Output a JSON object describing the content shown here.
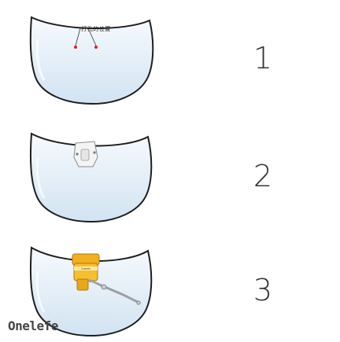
{
  "steps": [
    {
      "number": "1",
      "caption": "打孔的位置"
    },
    {
      "number": "2"
    },
    {
      "number": "3",
      "clip_label": "Onelefe"
    }
  ],
  "brand": "Onelefe",
  "colors": {
    "shield_fill": "#dbe9f5",
    "shield_stroke": "#1e1e1e",
    "marker": "#e02020",
    "clip_yellow": "#f0b020"
  }
}
